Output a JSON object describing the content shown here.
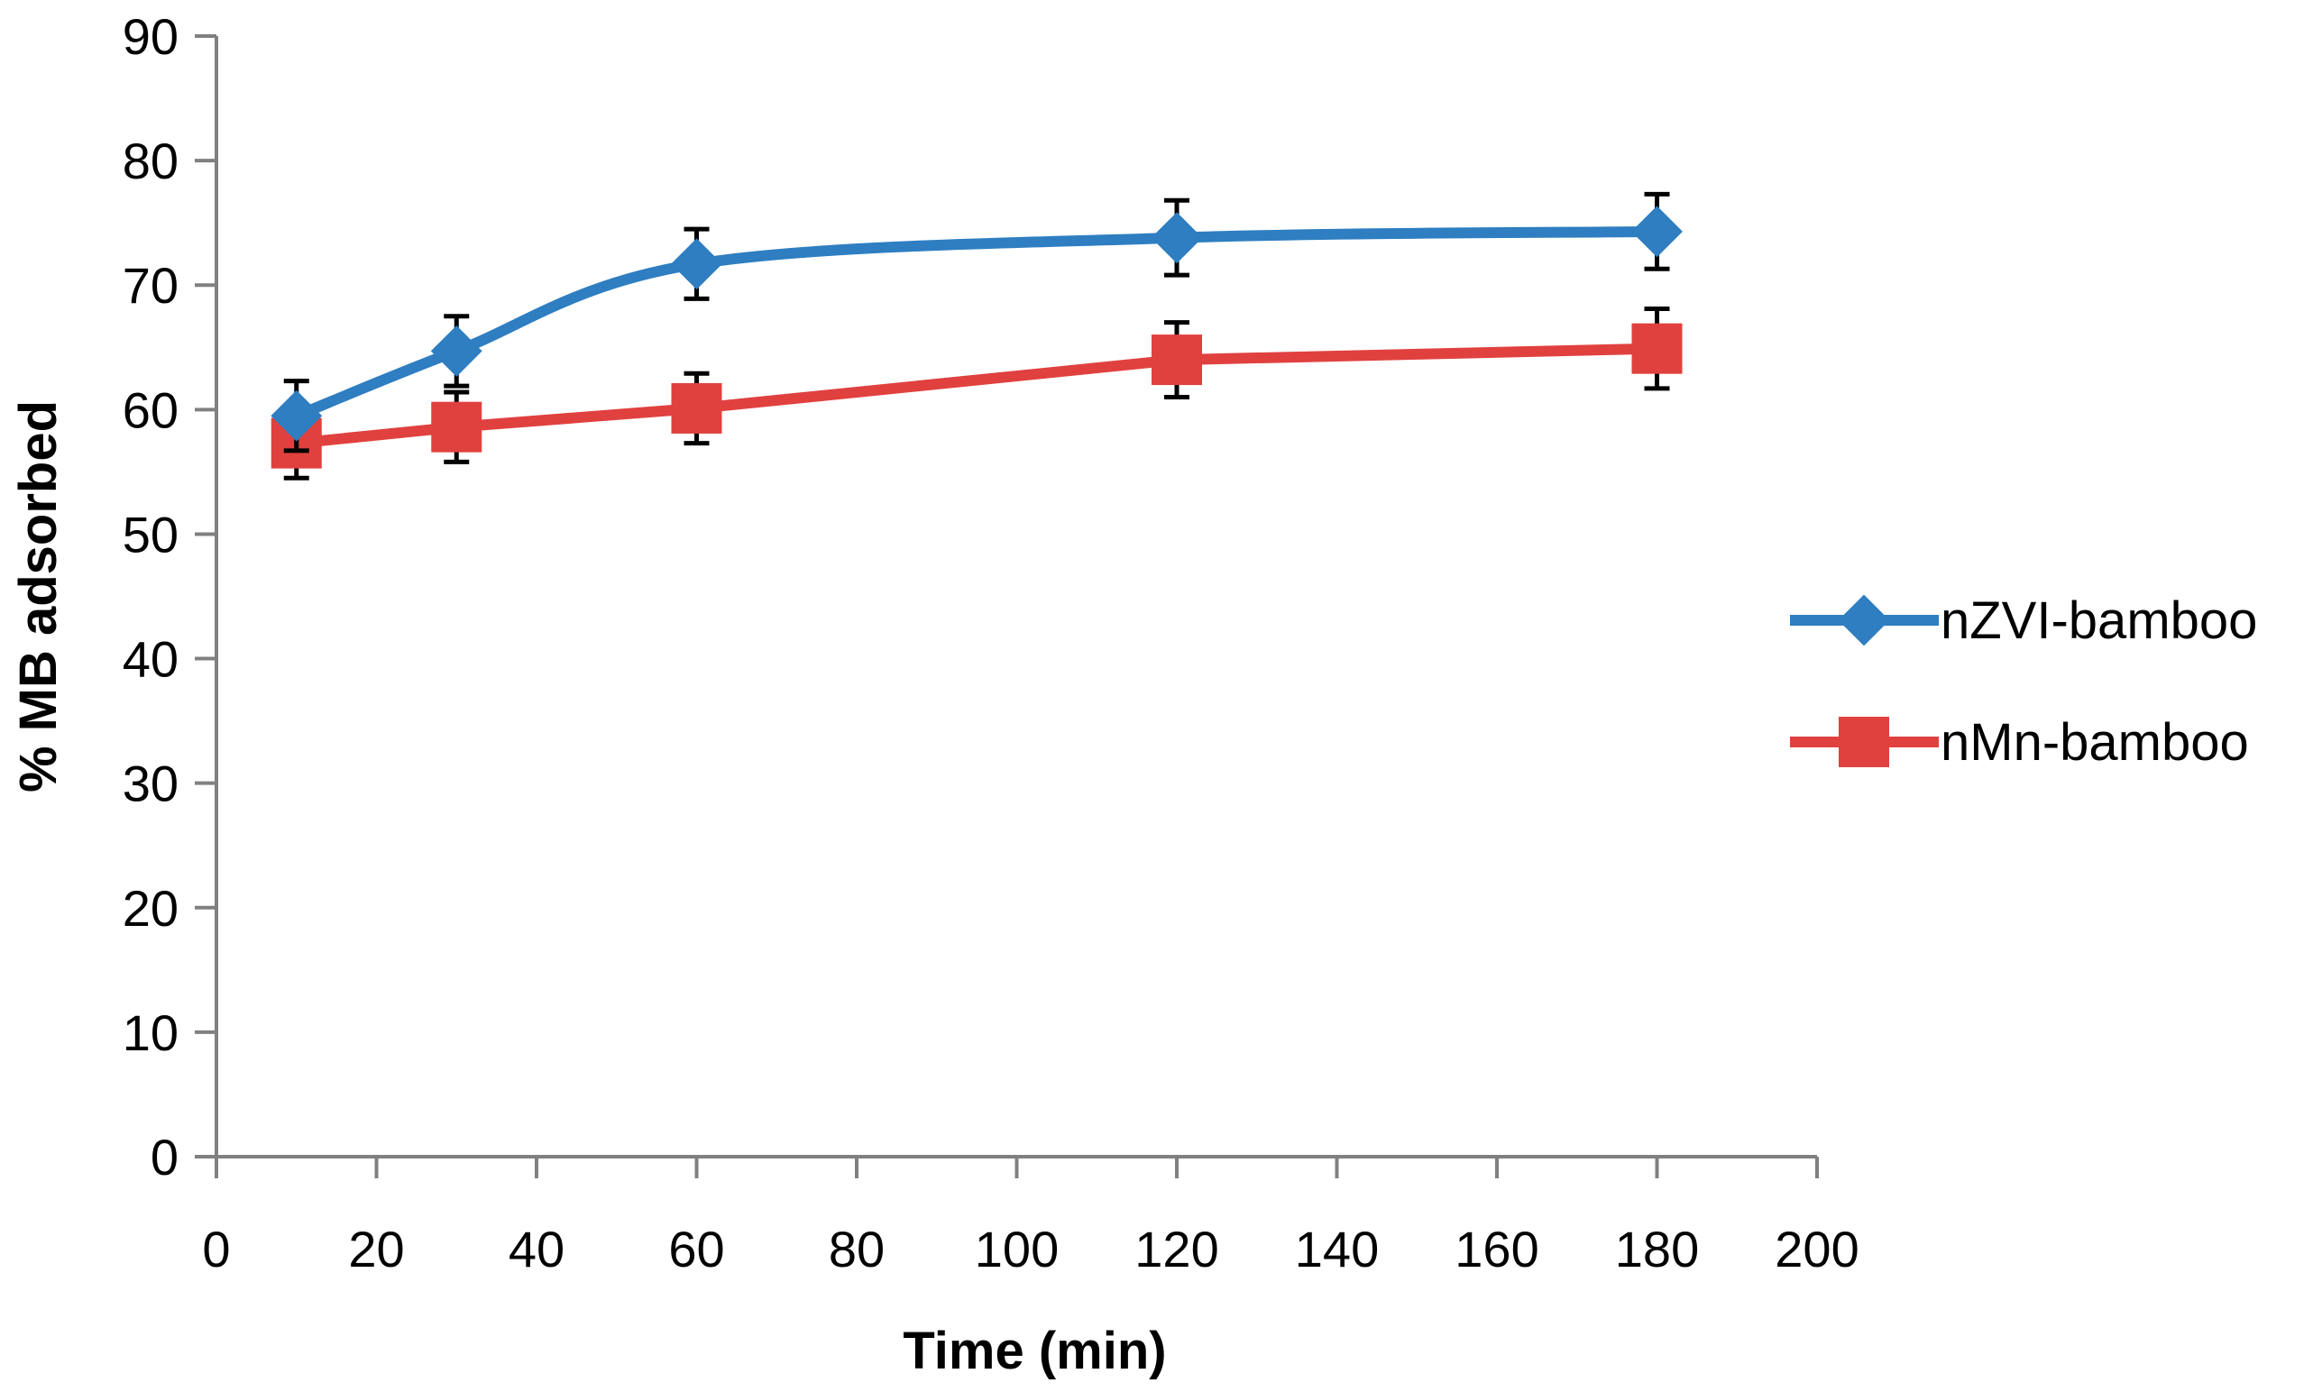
{
  "chart_data": {
    "type": "line",
    "title": "",
    "xlabel": "Time (min)",
    "ylabel": "% MB adsorbed",
    "xlim": [
      0,
      200
    ],
    "ylim": [
      0,
      90
    ],
    "xticks": [
      0,
      20,
      40,
      60,
      80,
      100,
      120,
      140,
      160,
      180,
      200
    ],
    "yticks": [
      0,
      10,
      20,
      30,
      40,
      50,
      60,
      70,
      80,
      90
    ],
    "grid": false,
    "legend_position": "right",
    "x": [
      10,
      30,
      60,
      120,
      180
    ],
    "series": [
      {
        "name": "nZVI-bamboo",
        "color": "#2E7EC1",
        "marker": "diamond",
        "smooth": true,
        "values": [
          59.5,
          64.7,
          71.7,
          73.8,
          74.3
        ],
        "errors": [
          2.8,
          2.8,
          2.8,
          3.0,
          3.0
        ]
      },
      {
        "name": "nMn-bamboo",
        "color": "#E0413F",
        "marker": "square",
        "smooth": false,
        "values": [
          57.3,
          58.6,
          60.1,
          64.0,
          64.9
        ],
        "errors": [
          2.8,
          2.8,
          2.8,
          3.0,
          3.2
        ]
      }
    ]
  }
}
